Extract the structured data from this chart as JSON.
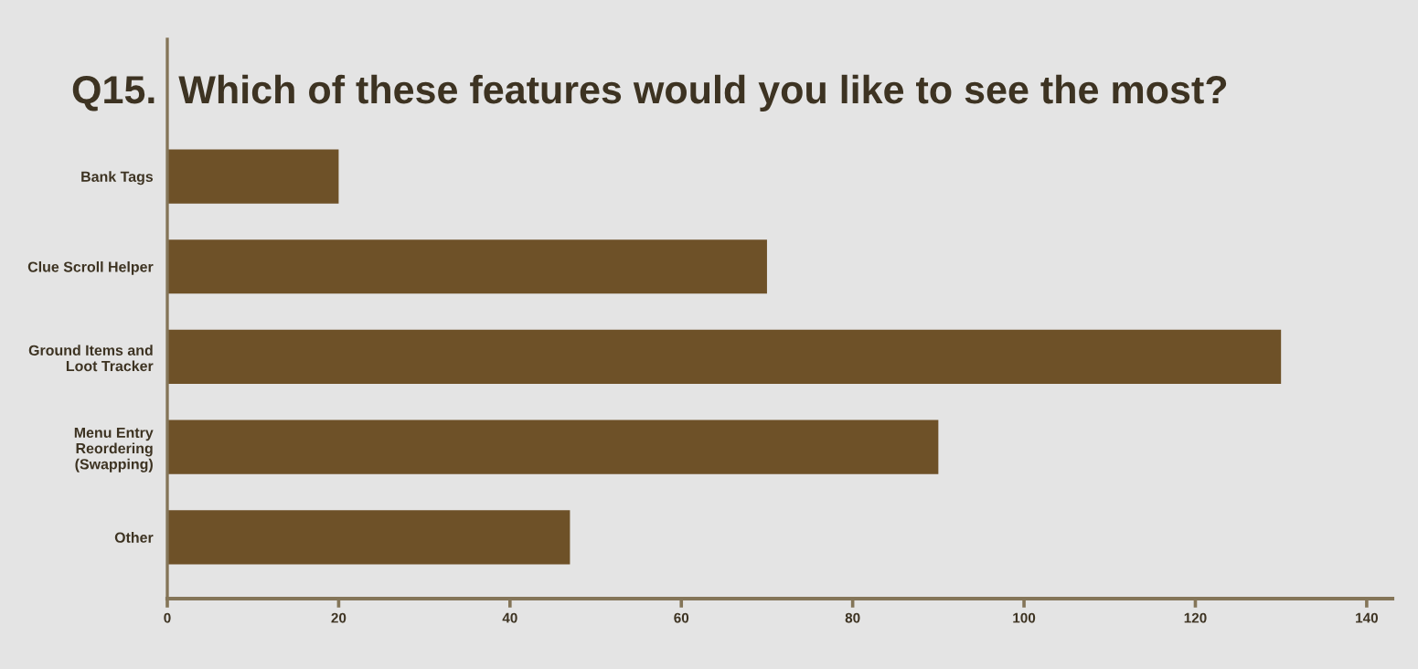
{
  "chart_data": {
    "type": "bar",
    "orientation": "horizontal",
    "title": "Q15.  Which of these features would you like to see the most?",
    "categories": [
      "Bank Tags",
      "Clue Scroll Helper",
      "Ground Items and\nLoot Tracker",
      "Menu Entry\nReordering\n(Swapping)",
      "Other"
    ],
    "values": [
      20,
      70,
      130,
      90,
      47
    ],
    "color": "#6e5128",
    "xlim": [
      0,
      143
    ],
    "xticks": [
      0,
      20,
      40,
      60,
      80,
      100,
      120,
      140
    ],
    "grid": false
  }
}
